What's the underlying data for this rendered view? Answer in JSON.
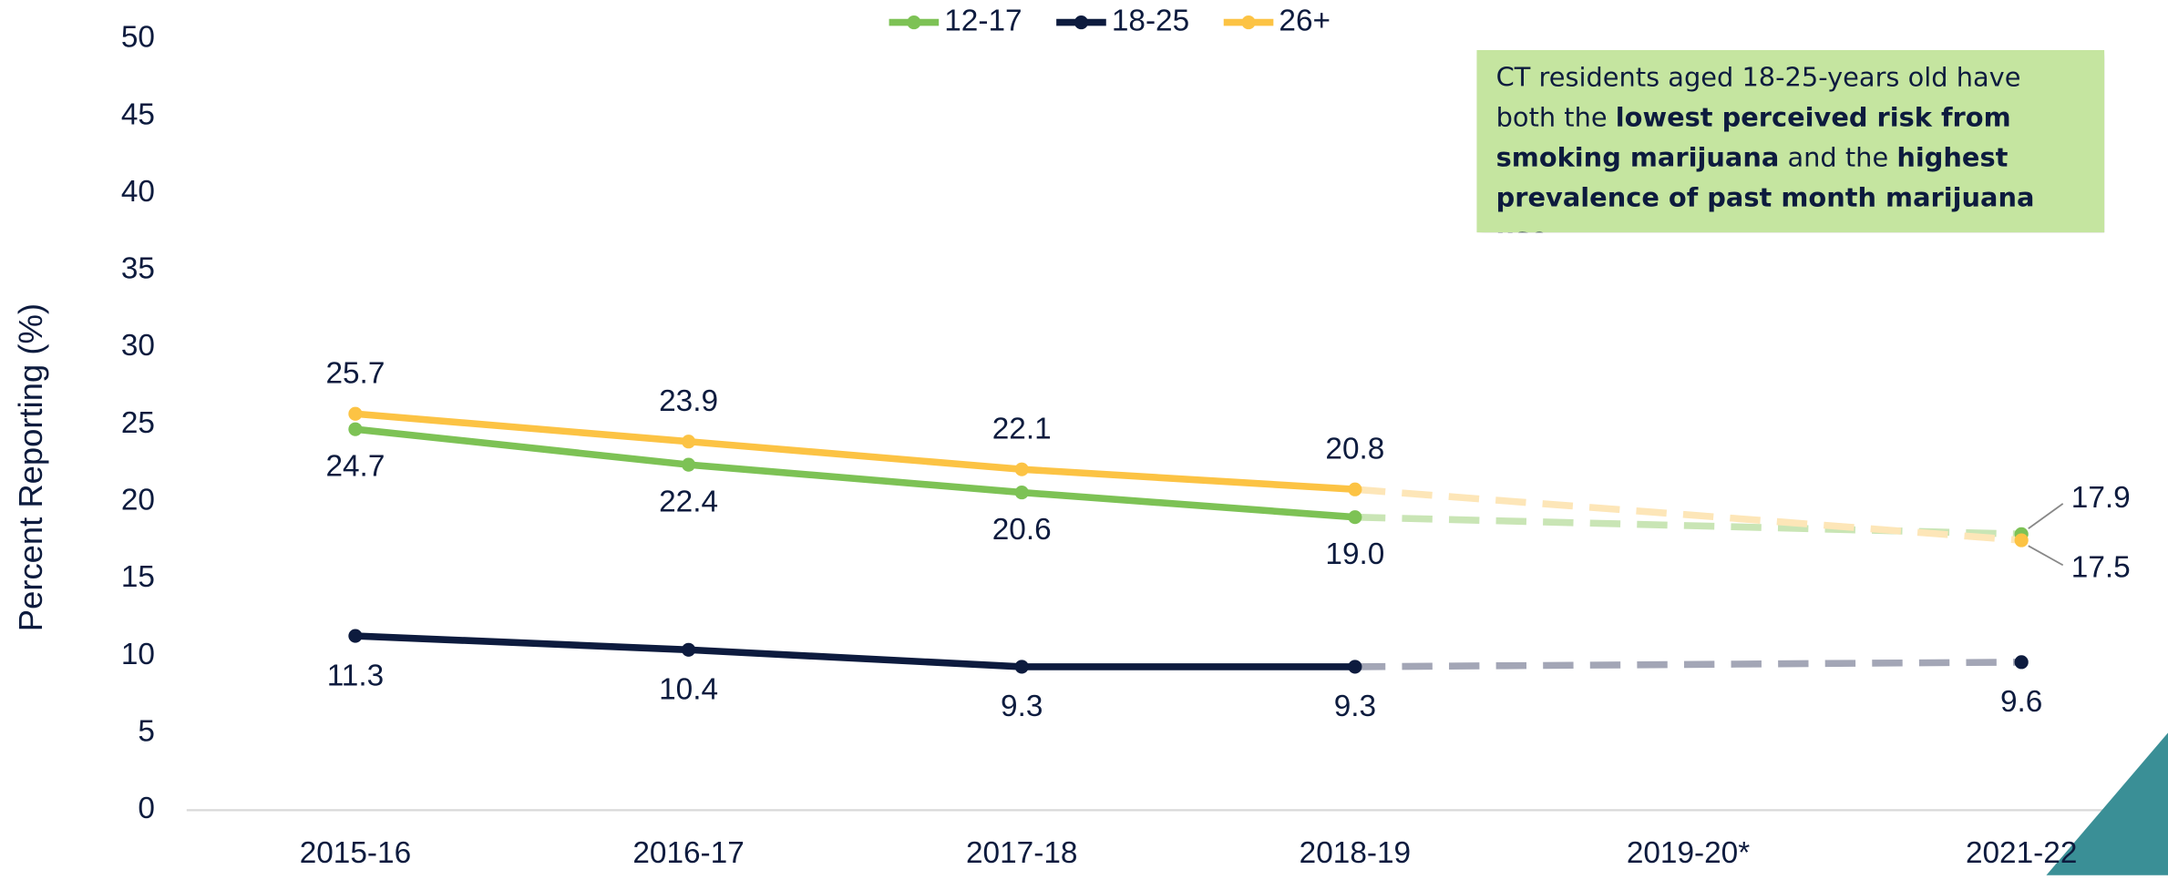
{
  "chart_data": {
    "type": "line",
    "y_axis_label": "Percent Reporting (%)",
    "categories": [
      "2015-16",
      "2016-17",
      "2017-18",
      "2018-19",
      "2019-20*",
      "2021-22"
    ],
    "ylim": [
      0,
      50
    ],
    "yticks": [
      0,
      5,
      10,
      15,
      20,
      25,
      30,
      35,
      40,
      45,
      50
    ],
    "legend": "top",
    "series": [
      {
        "name": "12-17",
        "color": "#7dc255",
        "faded_color": "#c9e5b5",
        "values": [
          24.7,
          22.4,
          20.6,
          19.0,
          null,
          17.9
        ],
        "value_labels": [
          "24.7",
          "22.4",
          "20.6",
          "19.0",
          null,
          "17.9"
        ]
      },
      {
        "name": "18-25",
        "color": "#0d1b3e",
        "faded_color": "#a3a6b6",
        "values": [
          11.3,
          10.4,
          9.3,
          9.3,
          null,
          9.6
        ],
        "value_labels": [
          "11.3",
          "10.4",
          "9.3",
          "9.3",
          null,
          "9.6"
        ]
      },
      {
        "name": "26+",
        "color": "#fcc344",
        "faded_color": "#fde6b8",
        "values": [
          25.7,
          23.9,
          22.1,
          20.8,
          null,
          17.5
        ],
        "value_labels": [
          "25.7",
          "23.9",
          "22.1",
          "20.8",
          null,
          "17.5"
        ]
      }
    ],
    "annotation": [
      "CT residents aged 18-25-years old have both the ",
      "lowest perceived risk from smoking marijuana",
      " and the ",
      "highest prevalence of past month marijuana use."
    ]
  }
}
